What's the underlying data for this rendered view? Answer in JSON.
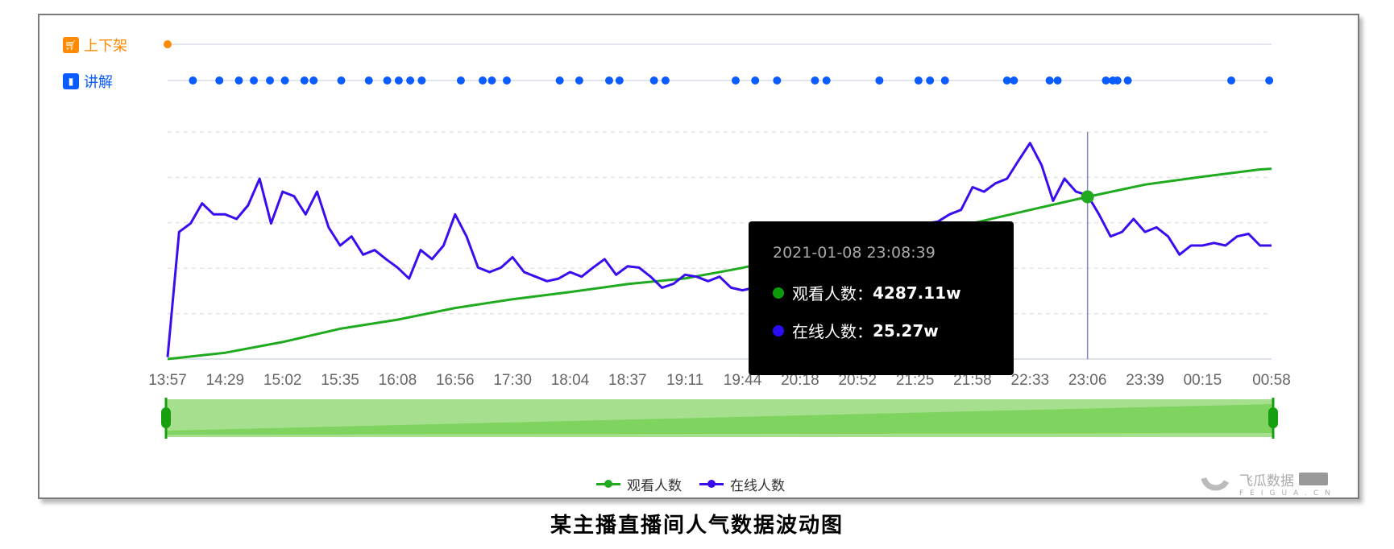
{
  "rows": {
    "shelf": {
      "label": "上下架",
      "icon": "cart-icon",
      "color": "#ff8a00",
      "events": [
        0
      ]
    },
    "explain": {
      "label": "讲解",
      "icon": "microphone-icon",
      "color": "#0a5cff",
      "events": [
        2.2,
        4.5,
        6.2,
        7.5,
        8.9,
        10.2,
        11.9,
        12.7,
        15.1,
        17.5,
        19.1,
        20.1,
        21.1,
        22.1,
        25.5,
        27.4,
        28.2,
        29.5,
        34.1,
        35.8,
        38.4,
        39.3,
        42.3,
        43.3,
        49.4,
        51.1,
        53.0,
        56.3,
        57.3,
        61.9,
        65.3,
        66.3,
        67.6,
        73.0,
        73.6,
        76.7,
        77.4,
        81.6,
        82.2,
        82.6,
        83.5,
        92.5,
        95.8
      ]
    }
  },
  "chart_data": {
    "type": "line",
    "title": "",
    "x_tick_labels": [
      "13:57",
      "14:29",
      "15:02",
      "15:35",
      "16:08",
      "16:56",
      "17:30",
      "18:04",
      "18:37",
      "19:11",
      "19:44",
      "20:18",
      "20:52",
      "21:25",
      "21:58",
      "22:33",
      "23:06",
      "23:39",
      "00:15",
      "00:58"
    ],
    "x_tick_indices": [
      0,
      5,
      10,
      15,
      20,
      25,
      30,
      35,
      40,
      45,
      50,
      55,
      60,
      65,
      70,
      75,
      80,
      85,
      90,
      96
    ],
    "point_count": 97,
    "grid": true,
    "series": [
      {
        "name": "观看人数",
        "color": "#1faa1f",
        "unit": "w",
        "ylim": [
          0,
          6000
        ],
        "indices": [
          0,
          5,
          10,
          15,
          20,
          25,
          30,
          35,
          40,
          45,
          50,
          55,
          60,
          65,
          70,
          75,
          80,
          85,
          90,
          95,
          96
        ],
        "values": [
          0,
          165,
          450,
          800,
          1040,
          1350,
          1580,
          1770,
          1980,
          2130,
          2410,
          2760,
          3120,
          3310,
          3590,
          3940,
          4287.11,
          4610,
          4820,
          5010,
          5030
        ]
      },
      {
        "name": "在线人数",
        "color": "#3a0cf0",
        "unit": "w",
        "ylim": [
          0,
          35
        ],
        "values": [
          0.3,
          19.6,
          20.9,
          24.0,
          22.3,
          22.3,
          21.6,
          23.7,
          27.8,
          20.9,
          25.8,
          25.1,
          22.3,
          25.8,
          20.3,
          17.5,
          18.9,
          16.1,
          16.8,
          15.4,
          14.1,
          12.4,
          16.8,
          15.4,
          17.5,
          22.3,
          18.9,
          14.1,
          13.4,
          14.1,
          15.7,
          13.4,
          12.7,
          12.0,
          12.4,
          13.4,
          12.7,
          14.1,
          15.4,
          13.0,
          14.3,
          14.1,
          12.7,
          11.0,
          11.6,
          13.0,
          12.7,
          12.0,
          12.7,
          11.0,
          10.6,
          11.0,
          11.3,
          11.6,
          12.0,
          12.4,
          12.7,
          13.4,
          14.1,
          14.7,
          15.4,
          16.1,
          16.8,
          18.2,
          18.9,
          19.8,
          20.9,
          21.2,
          22.3,
          23.0,
          26.5,
          25.8,
          27.1,
          27.8,
          30.6,
          33.3,
          29.9,
          24.4,
          27.8,
          25.8,
          25.27,
          22.3,
          18.9,
          19.6,
          21.6,
          19.6,
          20.3,
          18.9,
          16.1,
          17.5,
          17.5,
          17.9,
          17.5,
          18.9,
          19.3,
          17.5,
          17.5
        ]
      }
    ],
    "legend": {
      "placement": "bottom-center"
    },
    "tooltip": {
      "index": 80,
      "date": "2021-01-08 23:08:39",
      "lines": [
        {
          "label": "观看人数：",
          "value": "4287.11w",
          "color": "#0c9a0c"
        },
        {
          "label": "在线人数：",
          "value": "25.27w",
          "color": "#2a0cf5"
        }
      ]
    },
    "slider": {
      "start": 0,
      "end": 1,
      "color": "#8bd970"
    }
  },
  "watermark": {
    "brand": "飞瓜数据",
    "domain": "FEIGUA.CN"
  },
  "caption": "某主播直播间人气数据波动图"
}
